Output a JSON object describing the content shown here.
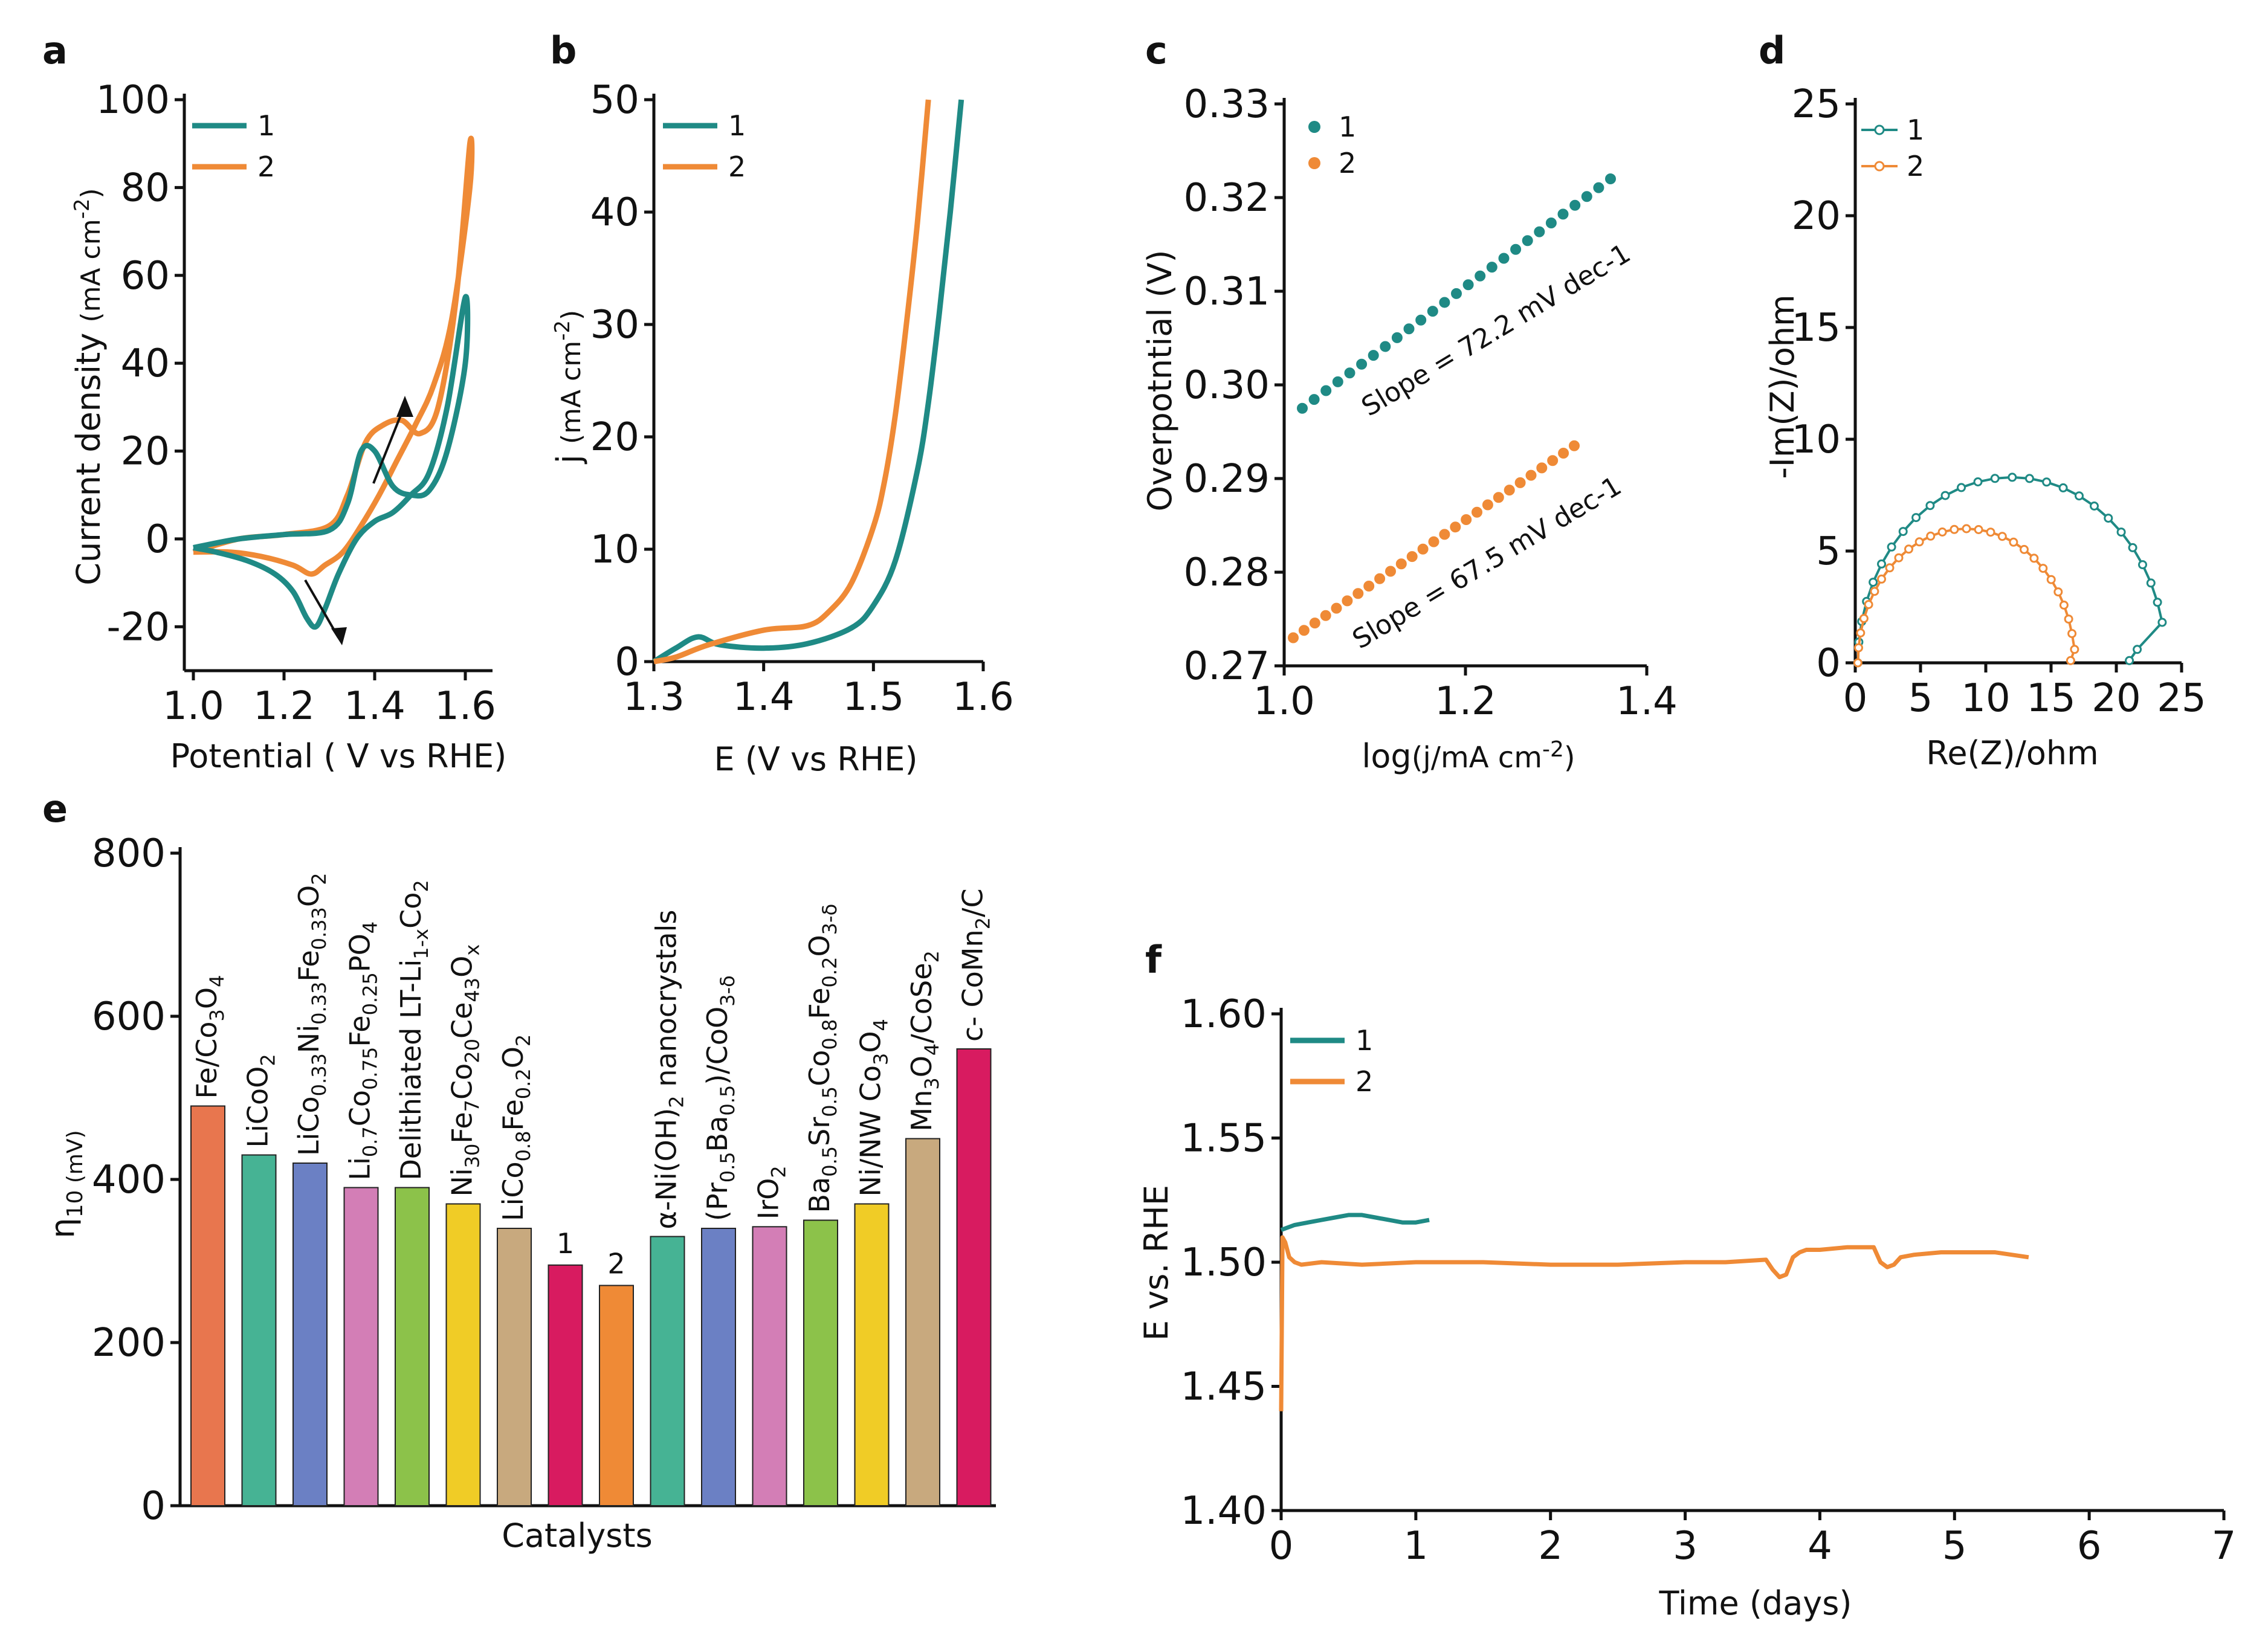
{
  "colors": {
    "s1": "#1f8a85",
    "s2": "#ef8a36",
    "axis": "#111111"
  },
  "chart_data": [
    {
      "panel": "a",
      "type": "line",
      "title": "",
      "xlabel": "Potential ( V vs RHE)",
      "ylabel": "Current density  (mA cm-2)",
      "ylabel_main": "Current density",
      "ylabel_unit": "(mA cm",
      "ylabel_sup": "-2",
      "ylabel_close": ")",
      "xlim": [
        0.98,
        1.66
      ],
      "ylim": [
        -30,
        100
      ],
      "xticks": [
        1.0,
        1.2,
        1.4,
        1.6
      ],
      "yticks": [
        -20,
        0,
        20,
        40,
        60,
        80,
        100
      ],
      "xtick_labels": [
        "1.0",
        "1.2",
        "1.4",
        "1.6"
      ],
      "ytick_labels": [
        "-20",
        "0",
        "20",
        "40",
        "60",
        "80",
        "100"
      ],
      "legend": [
        "1",
        "2"
      ],
      "series": [
        {
          "name": "1",
          "x": [
            1.0,
            1.1,
            1.2,
            1.3,
            1.34,
            1.37,
            1.4,
            1.44,
            1.48,
            1.52,
            1.56,
            1.6,
            1.6,
            1.56,
            1.52,
            1.48,
            1.44,
            1.4,
            1.36,
            1.32,
            1.29,
            1.27,
            1.25,
            1.22,
            1.18,
            1.12,
            1.05,
            1.0
          ],
          "y": [
            -2,
            0,
            1,
            2,
            8,
            20,
            20,
            12,
            10,
            11,
            20,
            40,
            55,
            30,
            15,
            10,
            6,
            4,
            0,
            -8,
            -16,
            -20,
            -18,
            -12,
            -8,
            -5,
            -3,
            -2
          ]
        },
        {
          "name": "2",
          "x": [
            1.0,
            1.1,
            1.2,
            1.3,
            1.34,
            1.38,
            1.42,
            1.46,
            1.5,
            1.54,
            1.58,
            1.61,
            1.61,
            1.57,
            1.53,
            1.49,
            1.45,
            1.41,
            1.37,
            1.33,
            1.29,
            1.26,
            1.22,
            1.15,
            1.08,
            1.0
          ],
          "y": [
            -3,
            0,
            1,
            3,
            10,
            22,
            26,
            27,
            24,
            30,
            55,
            90,
            80,
            50,
            35,
            26,
            18,
            10,
            3,
            -3,
            -6,
            -8,
            -6,
            -4,
            -3,
            -3
          ]
        }
      ]
    },
    {
      "panel": "b",
      "type": "line",
      "xlabel": "E (V vs RHE)",
      "ylabel": "j (mA cm-2)",
      "ylabel_main": "j",
      "ylabel_unit": "(mA cm",
      "ylabel_sup": "-2",
      "ylabel_close": ")",
      "xlim": [
        1.3,
        1.6
      ],
      "ylim": [
        0,
        50
      ],
      "xticks": [
        1.3,
        1.4,
        1.5,
        1.6
      ],
      "yticks": [
        0,
        10,
        20,
        30,
        40,
        50
      ],
      "xtick_labels": [
        "1.3",
        "1.4",
        "1.5",
        "1.6"
      ],
      "ytick_labels": [
        "0",
        "10",
        "20",
        "30",
        "40",
        "50"
      ],
      "legend": [
        "1",
        "2"
      ],
      "series": [
        {
          "name": "1",
          "x": [
            1.3,
            1.32,
            1.34,
            1.36,
            1.4,
            1.44,
            1.48,
            1.5,
            1.52,
            1.54,
            1.55,
            1.56,
            1.57,
            1.58
          ],
          "y": [
            0,
            1.2,
            2.2,
            1.5,
            1.2,
            1.6,
            3,
            5,
            9,
            17,
            23,
            31,
            40,
            50
          ]
        },
        {
          "name": "2",
          "x": [
            1.3,
            1.32,
            1.35,
            1.4,
            1.44,
            1.46,
            1.48,
            1.5,
            1.51,
            1.52,
            1.53,
            1.54,
            1.55
          ],
          "y": [
            0,
            0.4,
            1.5,
            2.8,
            3.2,
            4.5,
            7,
            12,
            16,
            22,
            30,
            39,
            50
          ]
        }
      ]
    },
    {
      "panel": "c",
      "type": "scatter",
      "xlabel": "log (j/mA cm-2)",
      "xlabel_main": "log",
      "xlabel_unit": "(j/mA cm",
      "xlabel_sup": "-2",
      "xlabel_close": ")",
      "ylabel": "Overpotntial (V)",
      "xlim": [
        1.0,
        1.4
      ],
      "ylim": [
        0.27,
        0.33
      ],
      "xticks": [
        1.0,
        1.2,
        1.4
      ],
      "yticks": [
        0.27,
        0.28,
        0.29,
        0.3,
        0.31,
        0.32,
        0.33
      ],
      "xtick_labels": [
        "1.0",
        "1.2",
        "1.4"
      ],
      "ytick_labels": [
        "0.27",
        "0.28",
        "0.29",
        "0.30",
        "0.31",
        "0.32",
        "0.33"
      ],
      "legend": [
        "1",
        "2"
      ],
      "annotations": [
        "Slope = 72.2 mV dec-1",
        "Slope = 67.5 mV dec-1"
      ],
      "series": [
        {
          "name": "1",
          "x_start": 1.02,
          "x_end": 1.36,
          "count": 27,
          "y_start": 0.2975,
          "y_end": 0.322
        },
        {
          "name": "2",
          "x_start": 1.01,
          "x_end": 1.32,
          "count": 27,
          "y_start": 0.273,
          "y_end": 0.2935
        }
      ]
    },
    {
      "panel": "d",
      "type": "line",
      "xlabel": "Re(Z)/ohm",
      "ylabel": "-Im(Z)/ohm",
      "xlim": [
        0,
        25
      ],
      "ylim": [
        0,
        25
      ],
      "xticks": [
        0,
        5,
        10,
        15,
        20,
        25
      ],
      "yticks": [
        0,
        5,
        10,
        15,
        20,
        25
      ],
      "xtick_labels": [
        "0",
        "5",
        "10",
        "15",
        "20",
        "25"
      ],
      "ytick_labels": [
        "0",
        "5",
        "10",
        "15",
        "20",
        "25"
      ],
      "legend": [
        "1",
        "2"
      ],
      "series": [
        {
          "name": "1",
          "center": 12.0,
          "radius": 11.8,
          "height": 8.3,
          "x_end": 21.0
        },
        {
          "name": "2",
          "center": 8.5,
          "radius": 8.3,
          "height": 6.0,
          "x_end": 16.5
        }
      ]
    },
    {
      "panel": "e",
      "type": "bar",
      "xlabel": "Catalysts",
      "ylabel": "η10 (mV)",
      "ylabel_main": "η",
      "ylabel_sub": "10 (mV)",
      "ylim": [
        0,
        800
      ],
      "yticks": [
        0,
        200,
        400,
        600,
        800
      ],
      "ytick_labels": [
        "0",
        "200",
        "400",
        "600",
        "800"
      ],
      "categories": [
        "Fe/Co3O4",
        "LiCoO2",
        "LiCo0.33Ni0.33Fe0.33O2",
        "Li0.7Co0.75Fe0.25PO4",
        "Delithiated LT-Li1-xCo2",
        "Ni30Fe7Co20Ce43Ox",
        "LiCo0.8Fe0.2O2",
        "1",
        "2",
        "α-Ni(OH)2 nanocrystals",
        "(Pr0.5Ba0.5)/CoO3-δ",
        "IrO2",
        "Ba0.5Sr0.5Co0.8Fe0.2O3-δ",
        "Ni/NW Co3O4",
        "Mn3O4/CoSe2",
        "c- CoMn2/C"
      ],
      "values": [
        490,
        430,
        420,
        390,
        390,
        370,
        340,
        295,
        270,
        330,
        340,
        342,
        350,
        370,
        450,
        560
      ],
      "bar_colors": [
        "#e8764e",
        "#46b394",
        "#6b80c4",
        "#d37eb6",
        "#8cc24a",
        "#f0cc26",
        "#c8a97e",
        "#d81b60",
        "#ef8a36",
        "#46b394",
        "#6b80c4",
        "#d37eb6",
        "#8cc24a",
        "#f0cc26",
        "#c8a97e",
        "#d81b60"
      ]
    },
    {
      "panel": "f",
      "type": "line",
      "xlabel": "Time (days)",
      "ylabel": "E vs. RHE",
      "xlim": [
        0,
        7
      ],
      "ylim": [
        1.4,
        1.6
      ],
      "xticks": [
        0,
        1,
        2,
        3,
        4,
        5,
        6,
        7
      ],
      "yticks": [
        1.4,
        1.45,
        1.5,
        1.55,
        1.6
      ],
      "xtick_labels": [
        "0",
        "1",
        "2",
        "3",
        "4",
        "5",
        "6",
        "7"
      ],
      "ytick_labels": [
        "1.40",
        "1.45",
        "1.50",
        "1.55",
        "1.60"
      ],
      "legend": [
        "1",
        "2"
      ],
      "series": [
        {
          "name": "1",
          "x": [
            0.0,
            0.05,
            0.1,
            0.2,
            0.3,
            0.4,
            0.5,
            0.6,
            0.7,
            0.8,
            0.9,
            1.0,
            1.1
          ],
          "y": [
            1.513,
            1.514,
            1.515,
            1.516,
            1.517,
            1.518,
            1.519,
            1.519,
            1.518,
            1.517,
            1.516,
            1.516,
            1.517
          ]
        },
        {
          "name": "2",
          "x": [
            0.0,
            0.01,
            0.03,
            0.06,
            0.1,
            0.15,
            0.3,
            0.6,
            1.0,
            1.5,
            2.0,
            2.5,
            3.0,
            3.3,
            3.6,
            3.65,
            3.7,
            3.75,
            3.8,
            3.85,
            3.9,
            4.0,
            4.2,
            4.4,
            4.45,
            4.5,
            4.55,
            4.6,
            4.7,
            4.9,
            5.1,
            5.3,
            5.55
          ],
          "y": [
            1.44,
            1.51,
            1.508,
            1.502,
            1.5,
            1.499,
            1.5,
            1.499,
            1.5,
            1.5,
            1.499,
            1.499,
            1.5,
            1.5,
            1.501,
            1.497,
            1.494,
            1.495,
            1.502,
            1.504,
            1.505,
            1.505,
            1.506,
            1.506,
            1.5,
            1.498,
            1.499,
            1.502,
            1.503,
            1.504,
            1.504,
            1.504,
            1.502
          ]
        }
      ]
    }
  ]
}
